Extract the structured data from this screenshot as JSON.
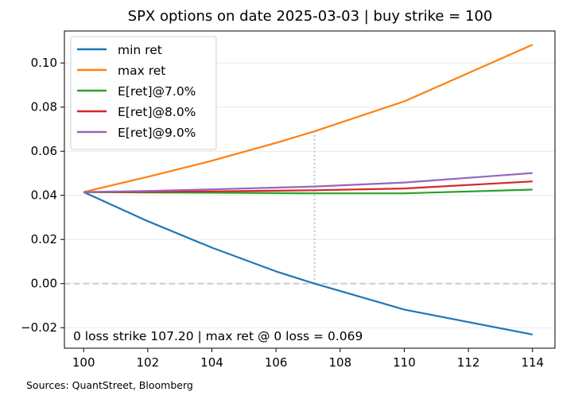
{
  "chart_data": {
    "type": "line",
    "title": "SPX options on date 2025-03-03 | buy strike = 100",
    "xlim": [
      99.4,
      114.7
    ],
    "ylim": [
      -0.0293,
      0.1145
    ],
    "xticks": [
      100,
      102,
      104,
      106,
      108,
      110,
      112,
      114
    ],
    "yticks": [
      -0.02,
      0.0,
      0.02,
      0.04,
      0.06,
      0.08,
      0.1
    ],
    "ytick_labels": [
      "−0.02",
      "0.00",
      "0.02",
      "0.04",
      "0.06",
      "0.08",
      "0.10"
    ],
    "grid": "horizontal",
    "legend_position": "upper-left",
    "x": [
      100,
      102,
      104,
      106,
      107.2,
      110,
      114
    ],
    "series": [
      {
        "name": "min ret",
        "color": "#1f77b4",
        "values": [
          0.0415,
          0.0283,
          0.0163,
          0.0055,
          0.0,
          -0.0118,
          -0.0231
        ]
      },
      {
        "name": "max ret",
        "color": "#ff7f0e",
        "values": [
          0.0415,
          0.0484,
          0.0557,
          0.0638,
          0.069,
          0.0826,
          0.1083
        ]
      },
      {
        "name": "E[ret]@7.0%",
        "color": "#2ca02c",
        "values": [
          0.0415,
          0.0413,
          0.0412,
          0.041,
          0.0409,
          0.0409,
          0.0426
        ]
      },
      {
        "name": "E[ret]@8.0%",
        "color": "#d62728",
        "values": [
          0.0415,
          0.0416,
          0.0418,
          0.0421,
          0.0423,
          0.0431,
          0.0463
        ]
      },
      {
        "name": "E[ret]@9.0%",
        "color": "#9467bd",
        "values": [
          0.0415,
          0.042,
          0.0427,
          0.0435,
          0.044,
          0.0458,
          0.0501
        ]
      }
    ],
    "zero_line": {
      "value": 0.0,
      "color": "#cccccc"
    },
    "marker_line": {
      "x": 107.2,
      "y_from": 0.0,
      "y_to": 0.069,
      "color": "#a6cee3"
    },
    "annotation": "0 loss strike 107.20 | max ret @ 0 loss = 0.069",
    "source": "Sources: QuantStreet, Bloomberg"
  }
}
